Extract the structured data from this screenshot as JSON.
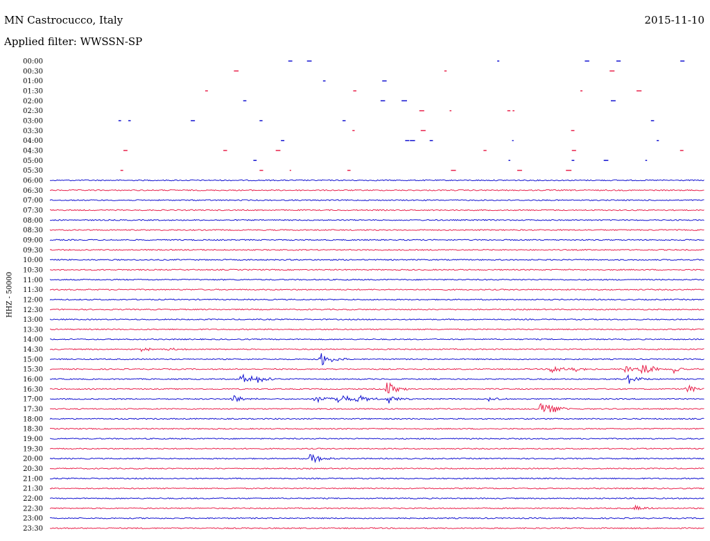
{
  "header": {
    "station": "MN Castrocucco, Italy",
    "date": "2015-11-10",
    "filter": "Applied filter: WWSSN-SP"
  },
  "chart_data": {
    "type": "line",
    "chart_kind": "helicorder",
    "ylabel": "HHZ - 50000",
    "row_labels": [
      "00:00",
      "00:30",
      "01:00",
      "01:30",
      "02:00",
      "02:30",
      "03:00",
      "03:30",
      "04:00",
      "04:30",
      "05:00",
      "05:30",
      "06:00",
      "06:30",
      "07:00",
      "07:30",
      "08:00",
      "08:30",
      "09:00",
      "09:30",
      "10:00",
      "10:30",
      "11:00",
      "11:30",
      "12:00",
      "12:30",
      "13:00",
      "13:30",
      "14:00",
      "14:30",
      "15:00",
      "15:30",
      "16:00",
      "16:30",
      "17:00",
      "17:30",
      "18:00",
      "18:30",
      "19:00",
      "19:30",
      "20:00",
      "20:30",
      "21:00",
      "21:30",
      "22:00",
      "22:30",
      "23:00",
      "23:30"
    ],
    "x_range_minutes": [
      0,
      30
    ],
    "colors": [
      "#1010d0",
      "#e8204a"
    ],
    "row_color_pattern": "alternating",
    "sparse_rows_end": "05:30",
    "trace_start_row": "06:00",
    "events": [
      {
        "row": "14:30",
        "minute": 4.1,
        "amp": 0.4
      },
      {
        "row": "14:30",
        "minute": 5.3,
        "amp": 0.35
      },
      {
        "row": "15:00",
        "minute": 12.4,
        "amp": 1.2
      },
      {
        "row": "15:30",
        "minute": 23.0,
        "amp": 0.8
      },
      {
        "row": "15:30",
        "minute": 24.0,
        "amp": 0.5
      },
      {
        "row": "15:30",
        "minute": 26.3,
        "amp": 0.6
      },
      {
        "row": "15:30",
        "minute": 27.1,
        "amp": 1.3
      },
      {
        "row": "15:30",
        "minute": 28.6,
        "amp": 0.7
      },
      {
        "row": "16:00",
        "minute": 8.8,
        "amp": 1.0
      },
      {
        "row": "16:00",
        "minute": 9.4,
        "amp": 0.9
      },
      {
        "row": "16:00",
        "minute": 26.4,
        "amp": 1.0
      },
      {
        "row": "16:30",
        "minute": 15.4,
        "amp": 1.3
      },
      {
        "row": "16:30",
        "minute": 29.2,
        "amp": 0.7
      },
      {
        "row": "17:00",
        "minute": 8.3,
        "amp": 0.8
      },
      {
        "row": "17:00",
        "minute": 12.2,
        "amp": 0.7
      },
      {
        "row": "17:00",
        "minute": 13.2,
        "amp": 1.0
      },
      {
        "row": "17:00",
        "minute": 14.1,
        "amp": 0.7
      },
      {
        "row": "17:00",
        "minute": 15.5,
        "amp": 0.8
      },
      {
        "row": "17:00",
        "minute": 20.1,
        "amp": 0.4
      },
      {
        "row": "17:30",
        "minute": 22.5,
        "amp": 2.2
      },
      {
        "row": "20:00",
        "minute": 11.9,
        "amp": 1.0
      },
      {
        "row": "22:30",
        "minute": 26.8,
        "amp": 0.6
      }
    ],
    "title": "",
    "xlabel": ""
  }
}
